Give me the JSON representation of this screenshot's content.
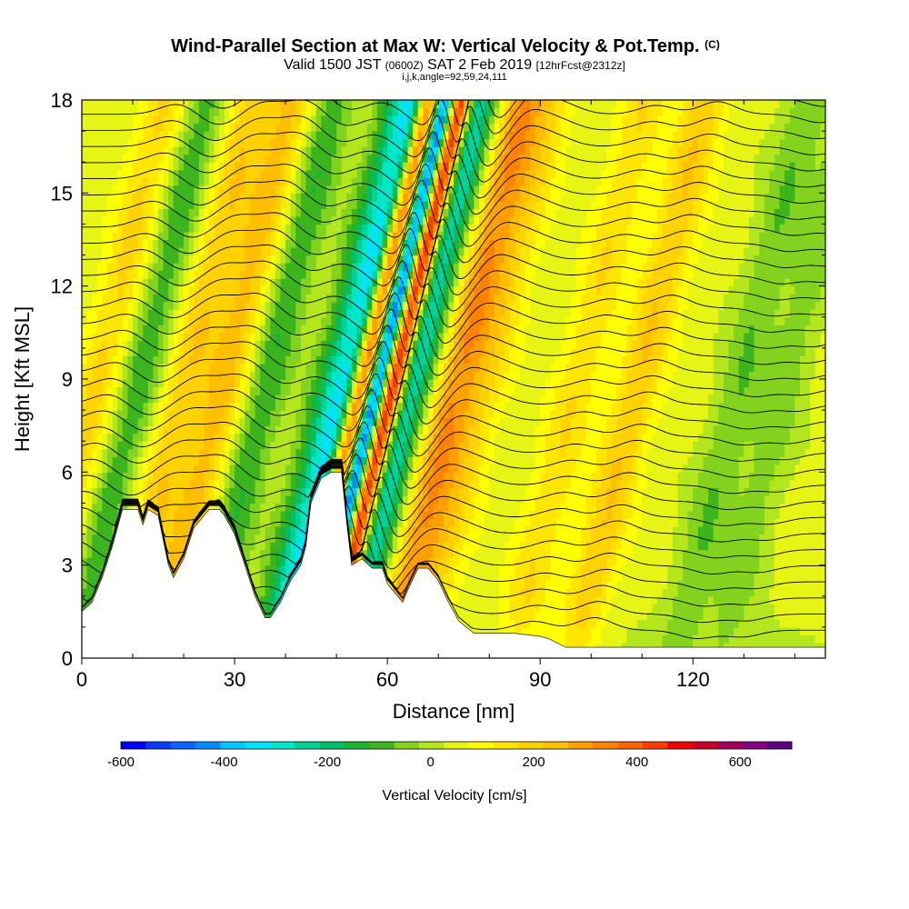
{
  "figure": {
    "title_main": "Wind-Parallel Section at Max W: Vertical Velocity & Pot.Temp.",
    "title_mark": "(C)",
    "subtitle_a": "Valid 1500 JST",
    "subtitle_b": "(0600Z)",
    "subtitle_c": "SAT 2 Feb 2019",
    "subtitle_d": "[12hrFcst@2312z]",
    "subtitle_line3": "i,j,k,angle=92,59,24,111"
  },
  "chart_data": {
    "type": "heatmap",
    "xlabel": "Distance [nm]",
    "ylabel": "Height [Kft MSL]",
    "xlim": [
      0,
      146
    ],
    "ylim": [
      0,
      18
    ],
    "x_ticks": [
      0,
      30,
      60,
      90,
      120
    ],
    "x_tick_labels": [
      "0",
      "30",
      "60",
      "90",
      "120"
    ],
    "y_ticks": [
      0,
      3,
      6,
      9,
      12,
      15,
      18
    ],
    "y_tick_labels": [
      "0",
      "3",
      "6",
      "9",
      "12",
      "15",
      "18"
    ],
    "colorbar": {
      "label": "Vertical Velocity [cm/s]",
      "range": [
        -600,
        700
      ],
      "tick_values": [
        -600,
        -400,
        -200,
        0,
        200,
        400,
        600
      ],
      "tick_labels": [
        "-600",
        "-400",
        "-200",
        "0",
        "200",
        "400",
        "600"
      ],
      "colors": [
        "#0000ff",
        "#0a3cff",
        "#0a64ff",
        "#008cff",
        "#00c8ff",
        "#00e1ff",
        "#00e6c8",
        "#00d296",
        "#00be64",
        "#1eb432",
        "#3cb41e",
        "#82d21e",
        "#b4e61e",
        "#e6f514",
        "#ffff00",
        "#ffe600",
        "#ffd200",
        "#ffbe00",
        "#ffa000",
        "#ff8200",
        "#ff6400",
        "#ff3c00",
        "#f00000",
        "#c80028",
        "#a0005a",
        "#82007d",
        "#5a0082"
      ]
    },
    "velocity_features": [
      {
        "x": 2,
        "w": 140
      },
      {
        "x": 10,
        "w": -150
      },
      {
        "x": 19,
        "w": 160
      },
      {
        "x": 27,
        "w": 190
      },
      {
        "x": 35,
        "w": -160
      },
      {
        "x": 47,
        "w": -120
      },
      {
        "x": 51,
        "w": -320
      },
      {
        "x": 54,
        "w": 600
      },
      {
        "x": 56.8,
        "w": -600
      },
      {
        "x": 59.8,
        "w": 650
      },
      {
        "x": 63.5,
        "w": -320
      },
      {
        "x": 72,
        "w": 260
      },
      {
        "x": 78,
        "w": 120
      },
      {
        "x": 96,
        "w": 120
      },
      {
        "x": 108,
        "w": 170
      },
      {
        "x": 128,
        "w": -110
      },
      {
        "x": 137,
        "w": -90
      }
    ],
    "terrain_profile": [
      {
        "x": 0,
        "h": 1.5
      },
      {
        "x": 2,
        "h": 1.8
      },
      {
        "x": 4,
        "h": 2.6
      },
      {
        "x": 6,
        "h": 3.6
      },
      {
        "x": 8,
        "h": 4.8
      },
      {
        "x": 11,
        "h": 4.8
      },
      {
        "x": 12,
        "h": 4.3
      },
      {
        "x": 13,
        "h": 4.8
      },
      {
        "x": 15,
        "h": 4.6
      },
      {
        "x": 17,
        "h": 3.0
      },
      {
        "x": 18,
        "h": 2.6
      },
      {
        "x": 20,
        "h": 3.2
      },
      {
        "x": 22,
        "h": 4.2
      },
      {
        "x": 25,
        "h": 4.8
      },
      {
        "x": 27,
        "h": 4.8
      },
      {
        "x": 28,
        "h": 4.6
      },
      {
        "x": 30,
        "h": 4.0
      },
      {
        "x": 32,
        "h": 3.0
      },
      {
        "x": 34,
        "h": 2.0
      },
      {
        "x": 36,
        "h": 1.3
      },
      {
        "x": 37,
        "h": 1.3
      },
      {
        "x": 39,
        "h": 1.8
      },
      {
        "x": 41,
        "h": 2.5
      },
      {
        "x": 43,
        "h": 3.0
      },
      {
        "x": 44,
        "h": 3.6
      },
      {
        "x": 45,
        "h": 5.0
      },
      {
        "x": 47,
        "h": 5.8
      },
      {
        "x": 49,
        "h": 6.0
      },
      {
        "x": 51,
        "h": 6.0
      },
      {
        "x": 52,
        "h": 4.4
      },
      {
        "x": 53,
        "h": 3.0
      },
      {
        "x": 55,
        "h": 3.2
      },
      {
        "x": 57,
        "h": 2.9
      },
      {
        "x": 59,
        "h": 2.9
      },
      {
        "x": 60,
        "h": 2.4
      },
      {
        "x": 61,
        "h": 2.2
      },
      {
        "x": 63,
        "h": 1.8
      },
      {
        "x": 64,
        "h": 2.2
      },
      {
        "x": 66,
        "h": 2.9
      },
      {
        "x": 68,
        "h": 2.9
      },
      {
        "x": 70,
        "h": 2.5
      },
      {
        "x": 72,
        "h": 1.8
      },
      {
        "x": 74,
        "h": 1.2
      },
      {
        "x": 77,
        "h": 0.8
      },
      {
        "x": 80,
        "h": 0.8
      },
      {
        "x": 85,
        "h": 0.8
      },
      {
        "x": 90,
        "h": 0.7
      },
      {
        "x": 92,
        "h": 0.6
      },
      {
        "x": 95,
        "h": 0.35
      },
      {
        "x": 100,
        "h": 0.35
      },
      {
        "x": 146,
        "h": 0.35
      }
    ]
  }
}
